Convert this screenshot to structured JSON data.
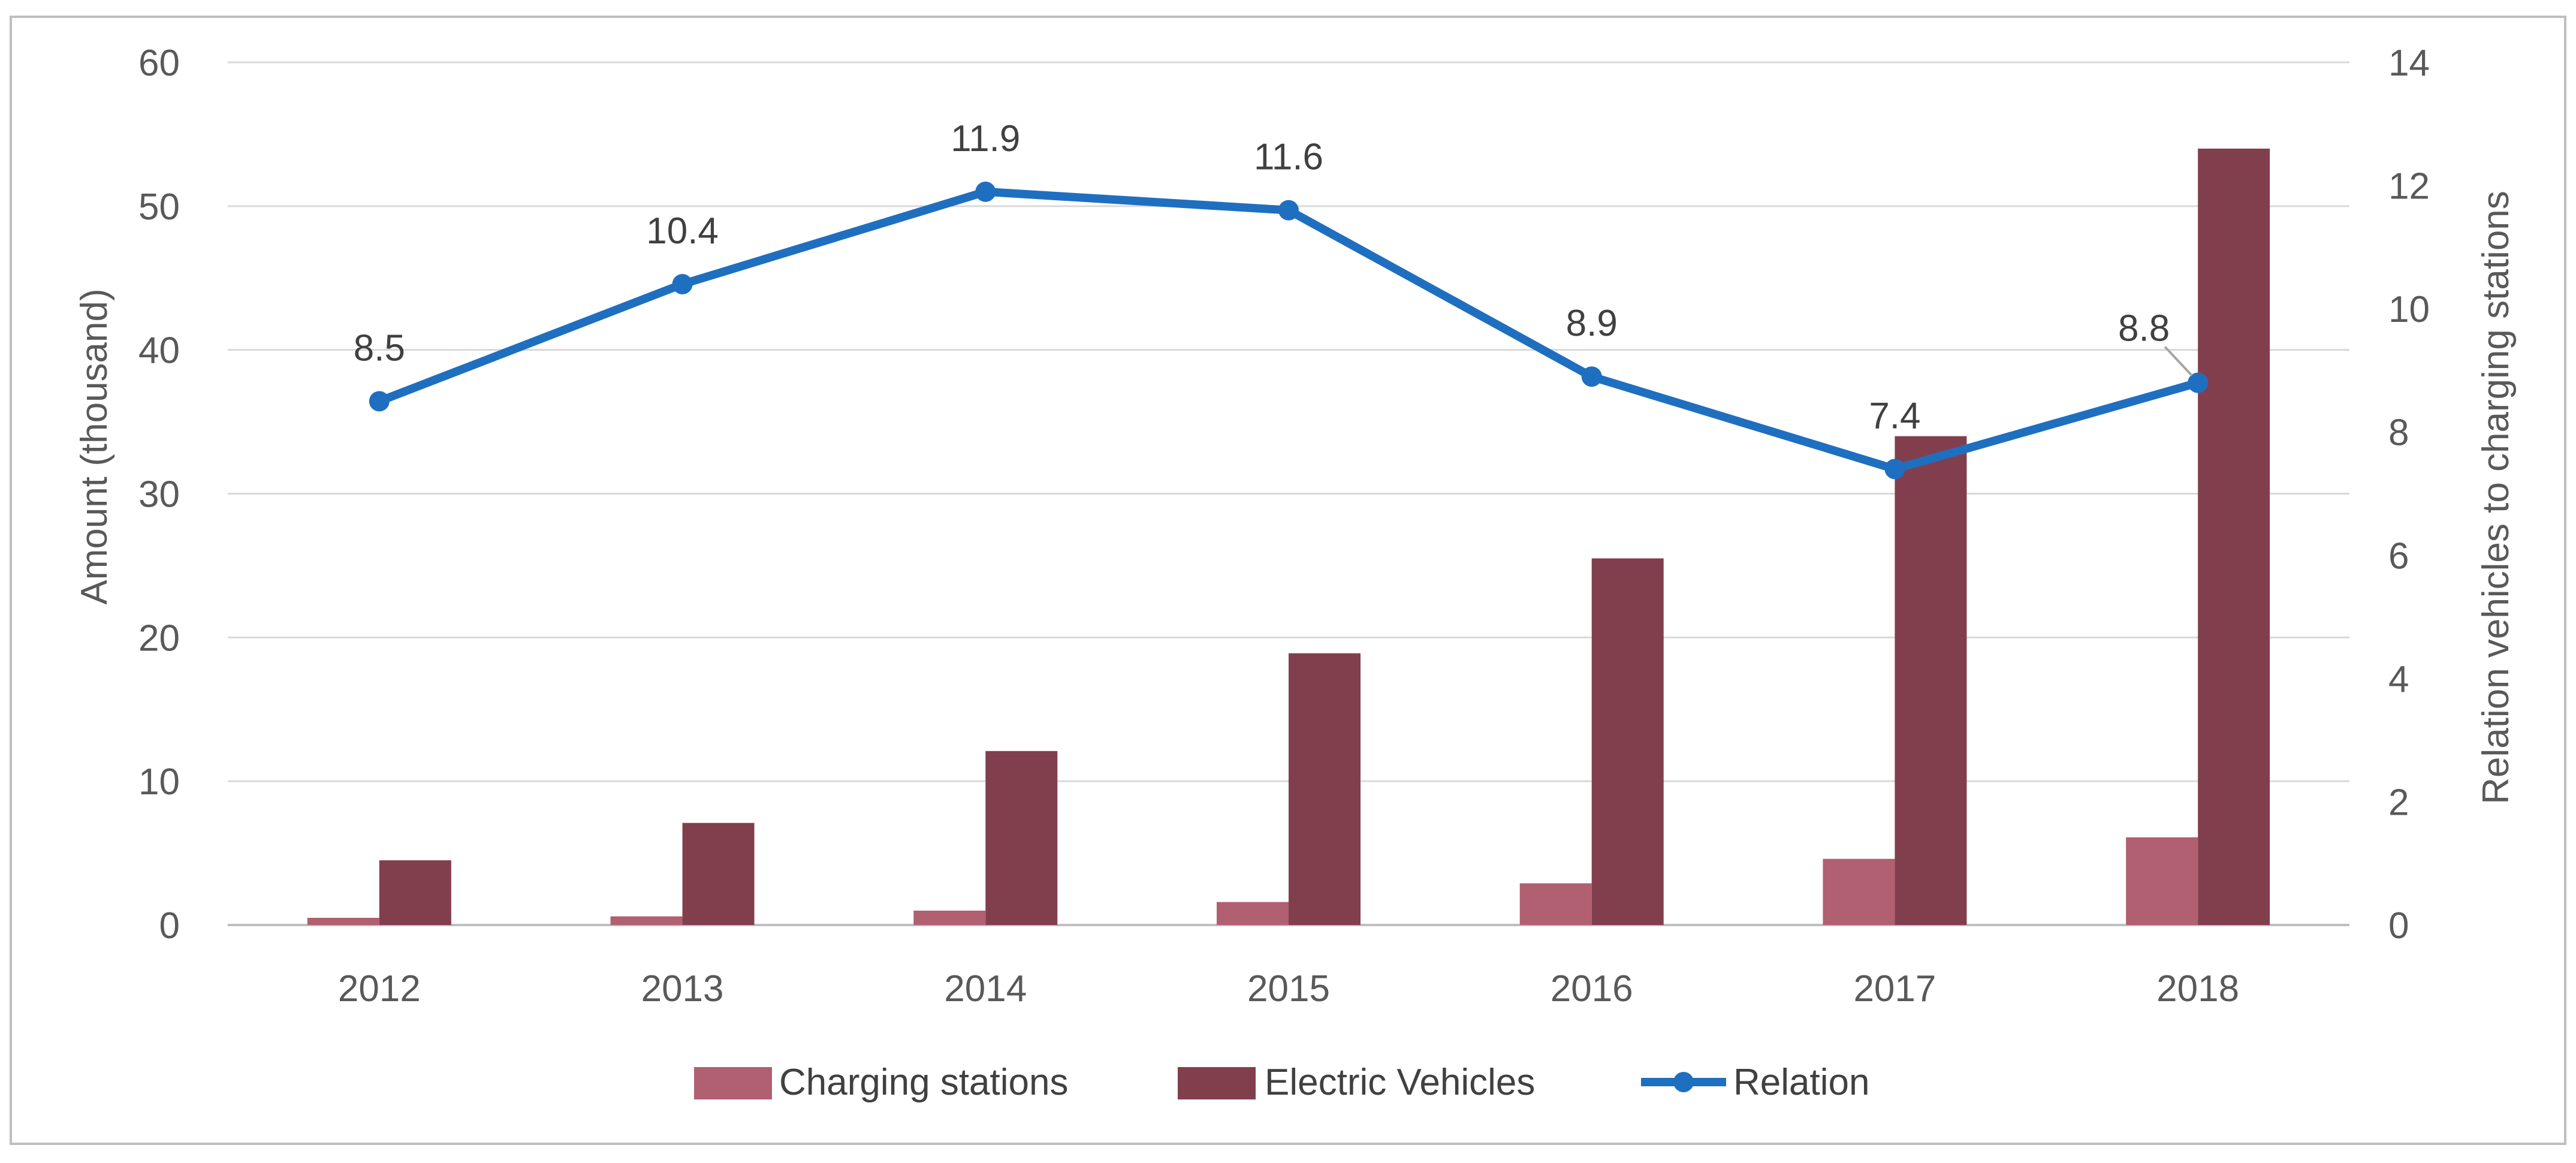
{
  "colors": {
    "charging": "#b06070",
    "vehicles": "#813f4d",
    "relation": "#1f6fc0",
    "grid": "#d9d9d9",
    "frame": "#bfbfbf"
  },
  "chart_data": {
    "type": "bar",
    "categories": [
      "2012",
      "2013",
      "2014",
      "2015",
      "2016",
      "2017",
      "2018"
    ],
    "series": [
      {
        "name": "Charging stations",
        "type": "bar",
        "axis": "left",
        "values": [
          0.5,
          0.6,
          1.0,
          1.6,
          2.9,
          4.6,
          6.1
        ]
      },
      {
        "name": "Electric Vehicles",
        "type": "bar",
        "axis": "left",
        "values": [
          4.5,
          7.1,
          12.1,
          18.9,
          25.5,
          34.0,
          54.0
        ]
      },
      {
        "name": "Relation",
        "type": "line",
        "axis": "right",
        "values": [
          8.5,
          10.4,
          11.9,
          11.6,
          8.9,
          7.4,
          8.8
        ],
        "labels": [
          "8.5",
          "10.4",
          "11.9",
          "11.6",
          "8.9",
          "7.4",
          "8.8"
        ]
      }
    ],
    "ylabel": "Amount (thousand)",
    "y2label": "Relation vehicles to charging stations",
    "ylim": [
      0,
      60
    ],
    "y2lim": [
      0,
      14
    ],
    "yticks": [
      "0",
      "10",
      "20",
      "30",
      "40",
      "50",
      "60"
    ],
    "y2ticks": [
      "0",
      "2",
      "4",
      "6",
      "8",
      "10",
      "12",
      "14"
    ],
    "grid": true,
    "legend_position": "bottom"
  }
}
